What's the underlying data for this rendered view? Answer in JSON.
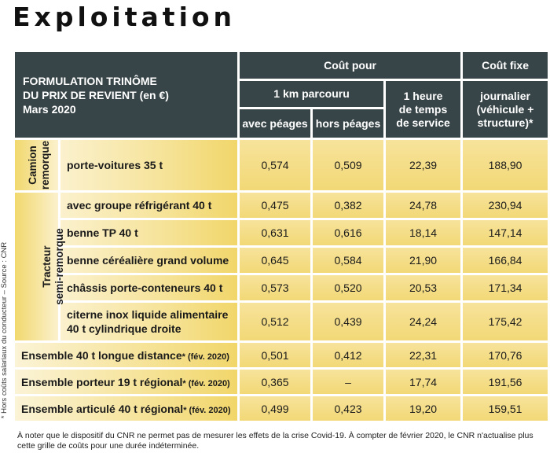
{
  "page": {
    "title": "Exploitation"
  },
  "side_note": "* Hors coûts salariaux du conducteur – Source : CNR",
  "footnote": "À noter que le dispositif du CNR ne permet pas de mesurer les effets de la crise Covid-19. À compter de février 2020, le CNR n'actualise plus cette grille de coûts pour une durée indéterminée.",
  "table": {
    "header_title": [
      "FORMULATION TRINÔME",
      "DU PRIX DE REVIENT (en €)",
      "Mars 2020"
    ],
    "col_cout_pour": "Coût pour",
    "col_cout_fixe": "Coût fixe",
    "col_km": "1 km parcouru",
    "col_heure": [
      "1 heure",
      "de temps",
      "de service"
    ],
    "col_journalier": [
      "journalier",
      "(véhicule +",
      "structure)*"
    ],
    "col_avec": "avec péages",
    "col_hors": "hors péages",
    "groups": {
      "camion": [
        "Camion",
        "remorque"
      ],
      "tracteur": [
        "Tracteur",
        "semi-remorque"
      ]
    },
    "rows": [
      {
        "label": "porte-voitures 35 t",
        "avec": "0,574",
        "hors": "0,509",
        "heure": "22,39",
        "fixe": "188,90"
      },
      {
        "label": "avec groupe réfrigérant 40 t",
        "avec": "0,475",
        "hors": "0,382",
        "heure": "24,78",
        "fixe": "230,94"
      },
      {
        "label": "benne TP 40 t",
        "avec": "0,631",
        "hors": "0,616",
        "heure": "18,14",
        "fixe": "147,14"
      },
      {
        "label": "benne céréalière grand volume",
        "avec": "0,645",
        "hors": "0,584",
        "heure": "21,90",
        "fixe": "166,84"
      },
      {
        "label": "châssis porte-conteneurs 40 t",
        "avec": "0,573",
        "hors": "0,520",
        "heure": "20,53",
        "fixe": "171,34"
      },
      {
        "label_line1": "citerne inox liquide alimentaire",
        "label_line2": "40 t cylindrique droite",
        "avec": "0,512",
        "hors": "0,439",
        "heure": "24,24",
        "fixe": "175,42"
      },
      {
        "label": "Ensemble 40 t longue distance",
        "date": "* (fév. 2020)",
        "avec": "0,501",
        "hors": "0,412",
        "heure": "22,31",
        "fixe": "170,76"
      },
      {
        "label": "Ensemble porteur 19 t régional",
        "date": "* (fév. 2020)",
        "avec": "0,365",
        "hors": "–",
        "heure": "17,74",
        "fixe": "191,56"
      },
      {
        "label": "Ensemble articulé 40 t régional",
        "date": "* (fév. 2020)",
        "avec": "0,499",
        "hors": "0,423",
        "heure": "19,20",
        "fixe": "159,51"
      }
    ]
  }
}
